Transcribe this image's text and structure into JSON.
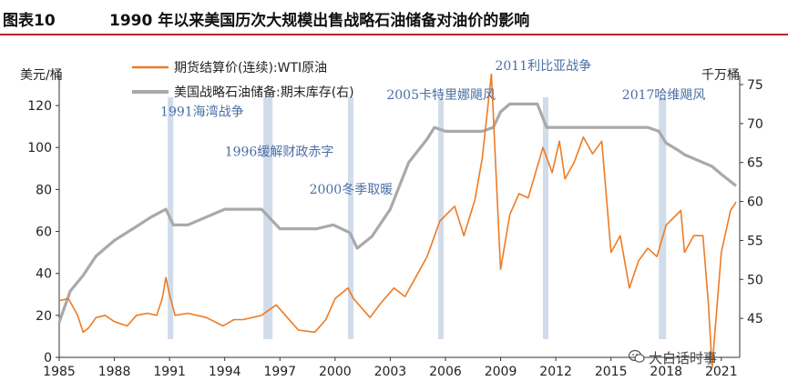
{
  "header": {
    "fig_num": "图表10",
    "title": "1990 年以来美国历次大规模出售战略石油储备对油价的影响"
  },
  "watermark": {
    "text": "大白话时事",
    "icon": "wechat-icon"
  },
  "colors": {
    "wti": "#ee7b25",
    "spr": "#a9a9a9",
    "event_band": "#c9d6e8",
    "event_text": "#4a6fa5"
  },
  "chart_data": {
    "type": "line",
    "title": "1990 年以来美国历次大规模出售战略石油储备对油价的影响",
    "left_axis": {
      "label": "美元/桶",
      "ylim": [
        0,
        130
      ],
      "ticks": [
        0,
        20,
        40,
        60,
        80,
        100,
        120
      ]
    },
    "right_axis": {
      "label": "千万桶",
      "ylim": [
        40,
        75
      ],
      "ticks": [
        45,
        50,
        55,
        60,
        65,
        70,
        75
      ]
    },
    "x_axis": {
      "xlim": [
        1985,
        2022
      ],
      "ticks": [
        1985,
        1988,
        1991,
        1994,
        1997,
        2000,
        2003,
        2006,
        2009,
        2012,
        2015,
        2018,
        2021
      ]
    },
    "legend": {
      "placement": "top-left"
    },
    "series": [
      {
        "name": "期货结算价(连续):WTI原油",
        "axis": "left",
        "x": [
          1985.0,
          1985.5,
          1986.0,
          1986.3,
          1986.6,
          1987.0,
          1987.5,
          1988.0,
          1988.7,
          1989.2,
          1989.8,
          1990.3,
          1990.6,
          1990.8,
          1991.0,
          1991.3,
          1992.0,
          1993.0,
          1993.9,
          1994.5,
          1995.0,
          1996.0,
          1996.8,
          1997.3,
          1998.0,
          1998.9,
          1999.5,
          2000.0,
          2000.7,
          2001.0,
          2001.9,
          2002.5,
          2003.2,
          2003.8,
          2004.5,
          2005.0,
          2005.7,
          2006.5,
          2007.0,
          2007.6,
          2008.0,
          2008.5,
          2008.9,
          2009.0,
          2009.5,
          2010.0,
          2010.5,
          2011.3,
          2011.8,
          2012.2,
          2012.5,
          2013.0,
          2013.5,
          2014.0,
          2014.5,
          2015.0,
          2015.5,
          2016.0,
          2016.5,
          2017.0,
          2017.5,
          2018.0,
          2018.8,
          2019.0,
          2019.5,
          2020.0,
          2020.3,
          2020.5,
          2021.0,
          2021.5,
          2021.8
        ],
        "y": [
          27,
          28,
          20,
          12,
          14,
          19,
          20,
          17,
          15,
          20,
          21,
          20,
          28,
          38,
          30,
          20,
          21,
          19,
          15,
          18,
          18,
          20,
          25,
          20,
          13,
          12,
          18,
          28,
          33,
          28,
          19,
          26,
          33,
          29,
          40,
          48,
          65,
          72,
          58,
          75,
          95,
          135,
          60,
          42,
          68,
          78,
          76,
          100,
          88,
          103,
          85,
          93,
          105,
          97,
          103,
          50,
          58,
          33,
          46,
          52,
          48,
          63,
          70,
          50,
          58,
          58,
          25,
          -20,
          50,
          70,
          74
        ]
      },
      {
        "name": "美国战略石油储备:期末库存(右)",
        "axis": "right",
        "x": [
          1985.0,
          1985.6,
          1986.3,
          1987.0,
          1988.0,
          1989.0,
          1990.0,
          1990.8,
          1991.2,
          1992.0,
          1993.0,
          1994.0,
          1995.0,
          1996.0,
          1997.0,
          1998.0,
          1999.0,
          1999.9,
          2000.8,
          2001.2,
          2002.0,
          2003.0,
          2004.0,
          2005.0,
          2005.4,
          2006.0,
          2007.0,
          2008.0,
          2008.6,
          2009.0,
          2009.5,
          2010.0,
          2011.0,
          2011.5,
          2012.0,
          2013.0,
          2014.0,
          2015.0,
          2016.0,
          2017.0,
          2017.6,
          2018.0,
          2018.7,
          2019.0,
          2020.0,
          2020.5,
          2021.0,
          2021.8
        ],
        "y": [
          44.5,
          48.5,
          50.5,
          53,
          55,
          56.5,
          58,
          59,
          57,
          57,
          58,
          59,
          59,
          59,
          56.5,
          56.5,
          56.5,
          57,
          56,
          54,
          55.5,
          59,
          65,
          68,
          69.5,
          69,
          69,
          69,
          69.5,
          71.5,
          72.5,
          72.5,
          72.5,
          69.5,
          69.5,
          69.5,
          69.5,
          69.5,
          69.5,
          69.5,
          69,
          67.5,
          66.5,
          66,
          65,
          64.5,
          63.5,
          62
        ]
      }
    ],
    "event_bands": [
      {
        "label": "1991海湾战争",
        "x0": 1990.9,
        "x1": 1991.2,
        "top_value": 124
      },
      {
        "label": "1996缓解财政赤字",
        "x0": 1996.1,
        "x1": 1996.6,
        "top_value": 124
      },
      {
        "label": "2000冬季取暖",
        "x0": 2000.7,
        "x1": 2001.0,
        "top_value": 124
      },
      {
        "label": "2005卡特里娜飓风",
        "x0": 2005.6,
        "x1": 2005.9,
        "top_value": 124
      },
      {
        "label": "2011利比亚战争",
        "x0": 2011.3,
        "x1": 2011.6,
        "top_value": 124
      },
      {
        "label": "2017哈维飓风",
        "x0": 2017.6,
        "x1": 2018.0,
        "top_value": 124
      }
    ],
    "event_labels": [
      {
        "label": "1991海湾战争",
        "x": 1990.5,
        "y": 115
      },
      {
        "label": "1996缓解财政赤字",
        "x": 1994.0,
        "y": 96
      },
      {
        "label": "2000冬季取暖",
        "x": 1998.6,
        "y": 78
      },
      {
        "label": "2005卡特里娜飓风",
        "x": 2002.8,
        "y": 123
      },
      {
        "label": "2011利比亚战争",
        "x": 2008.7,
        "y": 137
      },
      {
        "label": "2017哈维飓风",
        "x": 2015.6,
        "y": 123
      }
    ]
  }
}
